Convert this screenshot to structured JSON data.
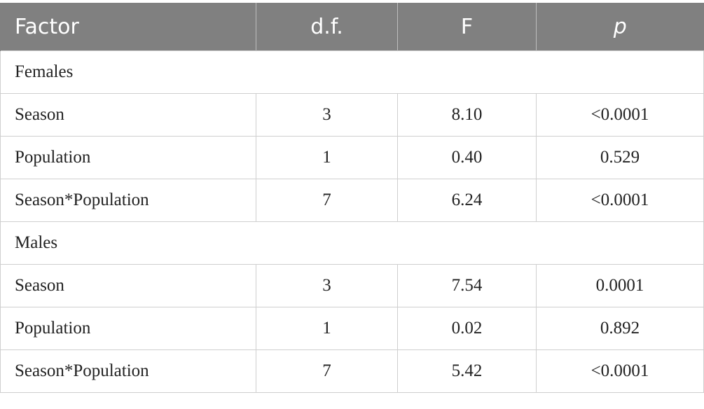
{
  "table": {
    "headers": [
      "Factor",
      "d.f.",
      "F",
      "p"
    ],
    "groups": [
      {
        "label": "Females",
        "rows": [
          {
            "factor": "Season",
            "df": "3",
            "f": "8.10",
            "p": "<0.0001"
          },
          {
            "factor": "Population",
            "df": "1",
            "f": "0.40",
            "p": "0.529"
          },
          {
            "factor": "Season*Population",
            "df": "7",
            "f": "6.24",
            "p": "<0.0001"
          }
        ]
      },
      {
        "label": "Males",
        "rows": [
          {
            "factor": "Season",
            "df": "3",
            "f": "7.54",
            "p": "0.0001"
          },
          {
            "factor": "Population",
            "df": "1",
            "f": "0.02",
            "p": "0.892"
          },
          {
            "factor": "Season*Population",
            "df": "7",
            "f": "5.42",
            "p": "<0.0001"
          }
        ]
      }
    ]
  }
}
